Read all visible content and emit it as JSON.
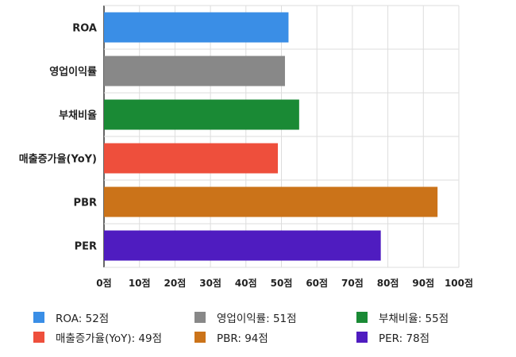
{
  "chart_data": {
    "type": "bar",
    "orientation": "horizontal",
    "categories": [
      "ROA",
      "영업이익률",
      "부채비율",
      "매출증가율(YoY)",
      "PBR",
      "PER"
    ],
    "values": [
      52,
      51,
      55,
      49,
      94,
      78
    ],
    "colors": [
      "#3a8ee6",
      "#888888",
      "#1a8a35",
      "#ee4f3c",
      "#cb7319",
      "#4f1cc0"
    ],
    "xlim": [
      0,
      100
    ],
    "xticks": [
      0,
      10,
      20,
      30,
      40,
      50,
      60,
      70,
      80,
      90,
      100
    ],
    "xtick_labels": [
      "0점",
      "10점",
      "20점",
      "30점",
      "40점",
      "50점",
      "60점",
      "70점",
      "80점",
      "90점",
      "100점"
    ],
    "grid": true,
    "legend_position": "bottom",
    "legend": [
      {
        "label": "ROA: 52점",
        "color": "#3a8ee6"
      },
      {
        "label": "영업이익률: 51점",
        "color": "#888888"
      },
      {
        "label": "부채비율: 55점",
        "color": "#1a8a35"
      },
      {
        "label": "매출증가율(YoY): 49점",
        "color": "#ee4f3c"
      },
      {
        "label": "PBR: 94점",
        "color": "#cb7319"
      },
      {
        "label": "PER: 78점",
        "color": "#4f1cc0"
      }
    ]
  }
}
